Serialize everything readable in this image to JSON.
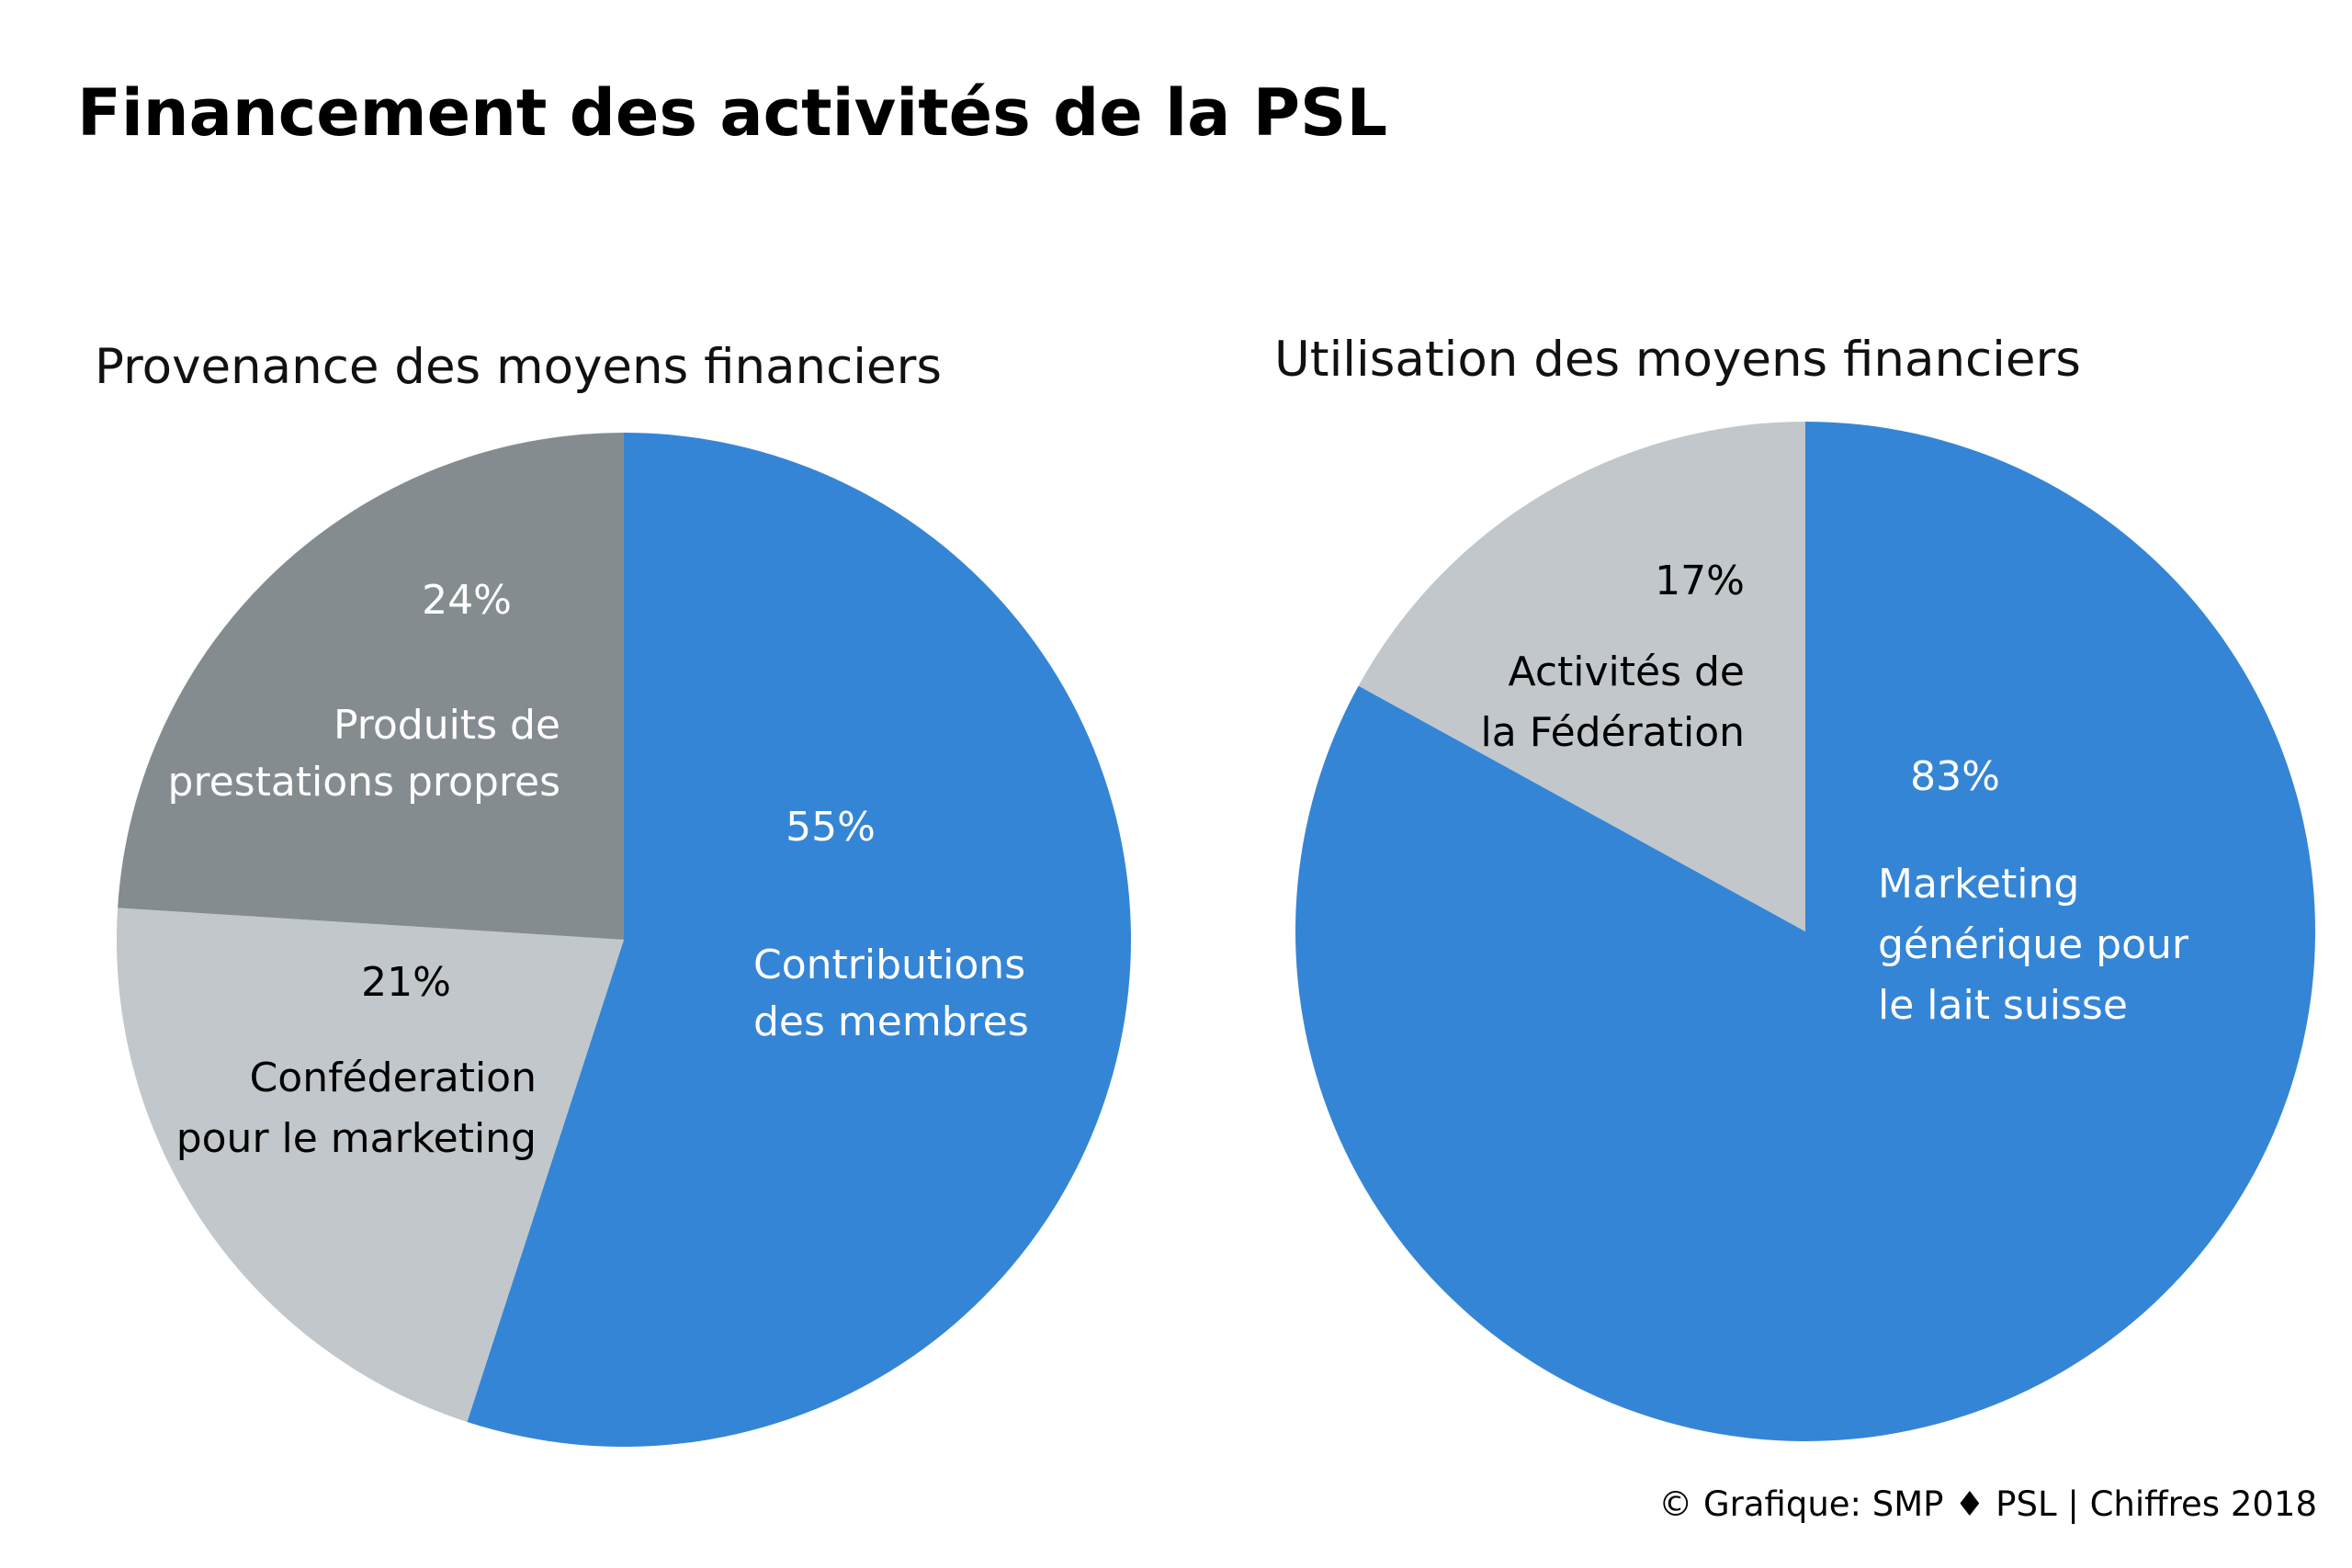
{
  "title": "Financement des activités de la PSL",
  "credit": "© Grafique: SMP ♦ PSL | Chiffres 2018",
  "colors": {
    "blue": "#3585d6",
    "dark_gray": "#858c90",
    "light_gray": "#c1c7ca",
    "white": "#ffffff",
    "black": "#000000"
  },
  "chart_data": [
    {
      "type": "pie",
      "title": "Provenance des moyens financiers",
      "start": "12 o'clock",
      "direction": "clockwise",
      "slices": [
        {
          "label": "Contributions des membres",
          "label_lines": [
            "Contributions",
            "des membres"
          ],
          "value": 55,
          "percent": "55%",
          "color": "#3585d6",
          "text_color": "#ffffff"
        },
        {
          "label": "Conféderation pour le marketing",
          "label_lines": [
            "Conféderation",
            "pour le marketing"
          ],
          "value": 21,
          "percent": "21%",
          "color": "#c1c7ca",
          "text_color": "#000000"
        },
        {
          "label": "Produits de prestations propres",
          "label_lines": [
            "Produits de",
            "prestations propres"
          ],
          "value": 24,
          "percent": "24%",
          "color": "#858c90",
          "text_color": "#ffffff"
        }
      ]
    },
    {
      "type": "pie",
      "title": "Utilisation des moyens financiers",
      "start": "12 o'clock",
      "direction": "clockwise",
      "slices": [
        {
          "label": "Marketing générique pour le lait suisse",
          "label_lines": [
            "Marketing",
            "générique pour",
            "le lait suisse"
          ],
          "value": 83,
          "percent": "83%",
          "color": "#3585d6",
          "text_color": "#ffffff"
        },
        {
          "label": "Activités de la Fédération",
          "label_lines": [
            "Activités de",
            "la Fédération"
          ],
          "value": 17,
          "percent": "17%",
          "color": "#c1c7ca",
          "text_color": "#000000"
        }
      ]
    }
  ]
}
